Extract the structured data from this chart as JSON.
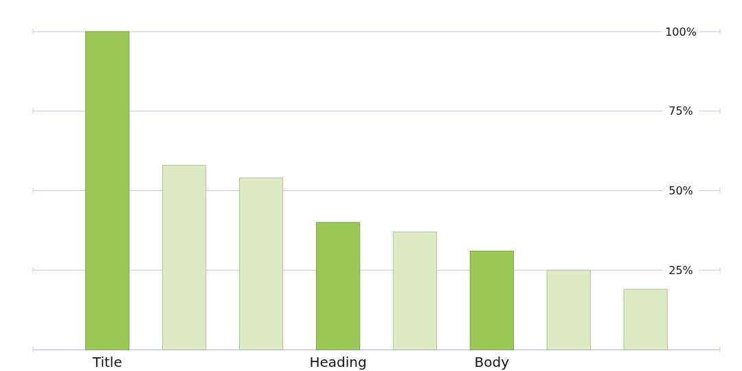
{
  "chart_data": {
    "type": "bar",
    "categories": [
      "Title",
      null,
      null,
      "Heading",
      null,
      "Body",
      null,
      null
    ],
    "values": [
      100,
      58,
      54,
      40,
      37,
      31,
      25,
      19
    ],
    "colors": [
      "#9bc856",
      "#ddebc5",
      "#ddebc5",
      "#9bc856",
      "#ddebc5",
      "#9bc856",
      "#ddebc5",
      "#ddebc5"
    ],
    "ylim": [
      0,
      100
    ],
    "yticks": [
      {
        "value": 0,
        "label": null
      },
      {
        "value": 25,
        "label": "25%"
      },
      {
        "value": 50,
        "label": "50%"
      },
      {
        "value": 75,
        "label": "75%"
      },
      {
        "value": 100,
        "label": "100%"
      }
    ],
    "grid": "y"
  }
}
